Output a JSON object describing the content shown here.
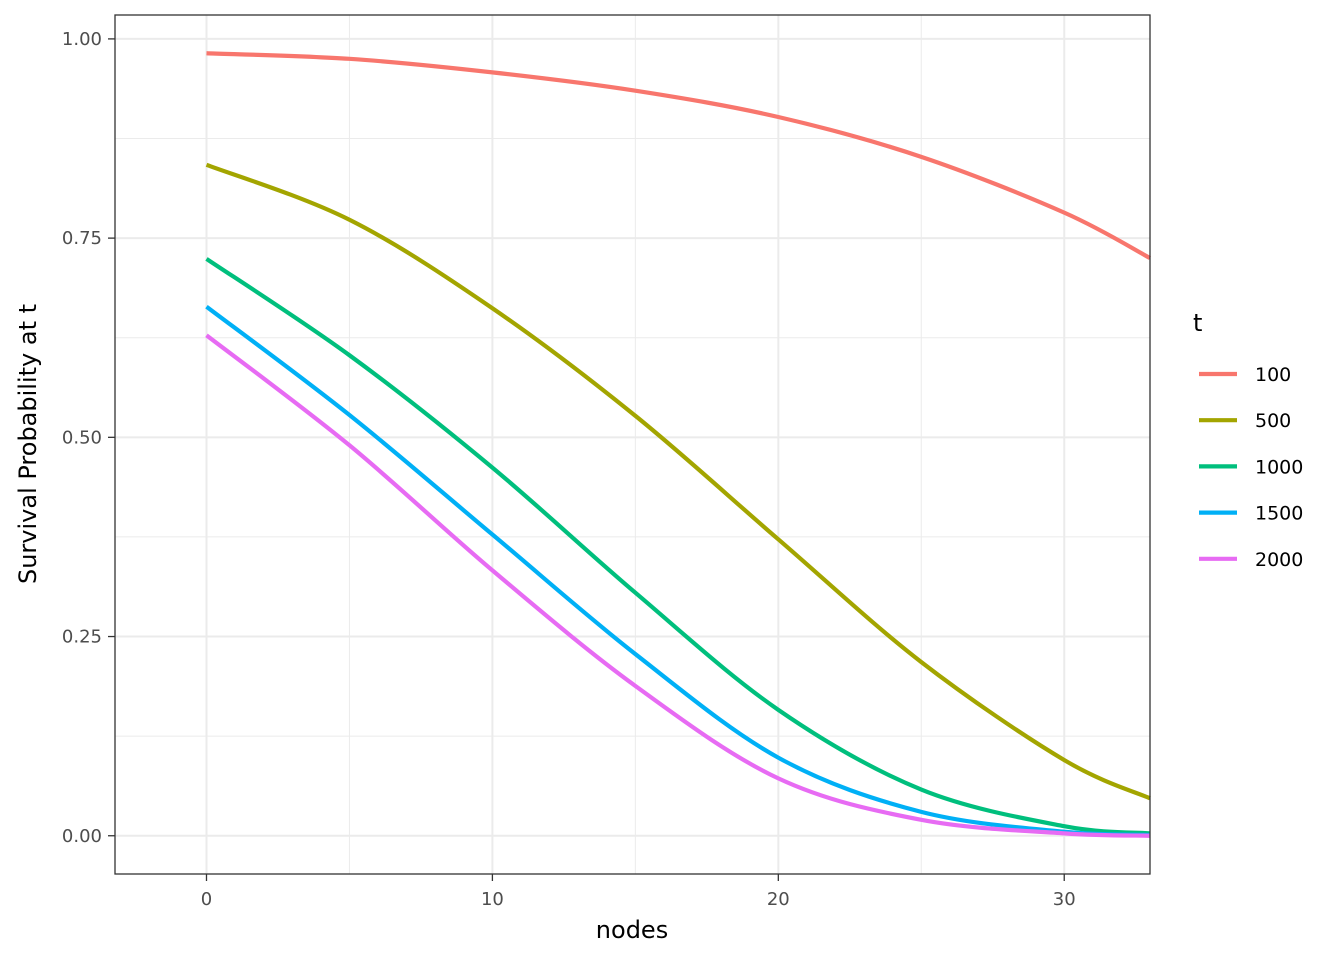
{
  "chart_data": {
    "type": "line",
    "xlabel": "nodes",
    "ylabel": "Survival Probability at t",
    "xlim": [
      -3.2,
      33
    ],
    "ylim": [
      -0.048,
      1.03
    ],
    "x_ticks": [
      0,
      10,
      20,
      30
    ],
    "x_tick_labels": [
      "0",
      "10",
      "20",
      "30"
    ],
    "y_ticks": [
      0,
      0.25,
      0.5,
      0.75,
      1.0
    ],
    "y_tick_labels": [
      "0.00",
      "0.25",
      "0.50",
      "0.75",
      "1.00"
    ],
    "grid": true,
    "legend": {
      "title": "t",
      "position": "right"
    },
    "x": [
      0,
      5,
      10,
      15,
      20,
      25,
      30,
      33
    ],
    "series": [
      {
        "name": "100",
        "color": "#F8766D",
        "values": [
          0.982,
          0.975,
          0.958,
          0.935,
          0.902,
          0.852,
          0.782,
          0.725
        ]
      },
      {
        "name": "500",
        "color": "#A3A500",
        "values": [
          0.842,
          0.773,
          0.662,
          0.527,
          0.372,
          0.218,
          0.095,
          0.047
        ]
      },
      {
        "name": "1000",
        "color": "#00BF7D",
        "values": [
          0.724,
          0.603,
          0.462,
          0.305,
          0.158,
          0.058,
          0.012,
          0.003
        ]
      },
      {
        "name": "1500",
        "color": "#00B0F6",
        "values": [
          0.664,
          0.528,
          0.378,
          0.228,
          0.098,
          0.03,
          0.005,
          0.001
        ]
      },
      {
        "name": "2000",
        "color": "#E76BF3",
        "values": [
          0.628,
          0.49,
          0.333,
          0.188,
          0.072,
          0.02,
          0.003,
          0.0
        ]
      }
    ]
  }
}
